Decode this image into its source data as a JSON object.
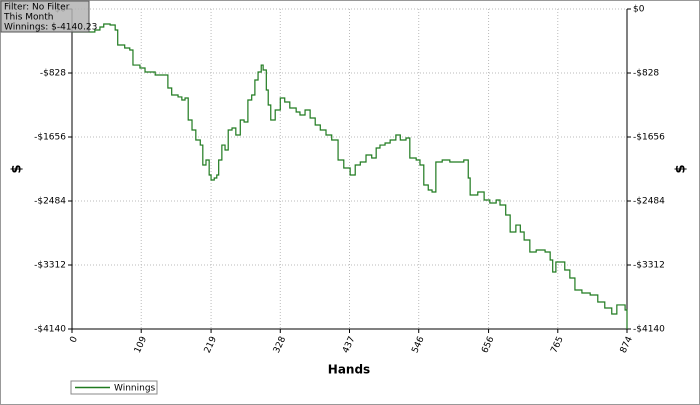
{
  "chart_data": {
    "type": "line",
    "annotations": [
      "Filter: No Filter",
      "This Month",
      "Winnings: $-4140.23"
    ],
    "x_label": "Hands",
    "y_label": "$",
    "y2_label": "$",
    "xlim": [
      0,
      874
    ],
    "xticks": [
      0,
      109,
      219,
      328,
      437,
      546,
      656,
      765,
      874
    ],
    "ylim": [
      -4140,
      0
    ],
    "yticks": [
      {
        "value": 0,
        "label": "$0"
      },
      {
        "value": -828,
        "label": "-$828"
      },
      {
        "value": -1656,
        "label": "-$1656"
      },
      {
        "value": -2484,
        "label": "-$2484"
      },
      {
        "value": -3312,
        "label": "-$3312"
      },
      {
        "value": -4140,
        "label": "-$4140"
      }
    ],
    "y2lim": [
      -4140,
      0
    ],
    "y2ticks": [
      {
        "value": 0,
        "label": "$0"
      },
      {
        "value": -828,
        "label": "-$828"
      },
      {
        "value": -1656,
        "label": "-$1656"
      },
      {
        "value": -2484,
        "label": "-$2484"
      },
      {
        "value": -3312,
        "label": "-$3312"
      },
      {
        "value": -4140,
        "label": "-$4140"
      }
    ],
    "grid": true,
    "legend": "bottom-left",
    "x": [
      0,
      20,
      36,
      44,
      50,
      60,
      68,
      72,
      83,
      91,
      96,
      107,
      115,
      123,
      131,
      146,
      151,
      157,
      167,
      173,
      178,
      183,
      189,
      195,
      202,
      206,
      211,
      216,
      219,
      224,
      228,
      231,
      236,
      241,
      246,
      252,
      258,
      265,
      271,
      277,
      283,
      288,
      293,
      298,
      301,
      306,
      309,
      313,
      320,
      328,
      335,
      343,
      353,
      359,
      367,
      375,
      383,
      391,
      400,
      409,
      419,
      428,
      438,
      446,
      454,
      463,
      472,
      479,
      485,
      493,
      501,
      510,
      517,
      526,
      532,
      542,
      548,
      554,
      561,
      567,
      573,
      583,
      595,
      608,
      617,
      624,
      627,
      639,
      649,
      658,
      668,
      674,
      683,
      690,
      699,
      706,
      712,
      721,
      731,
      745,
      753,
      757,
      762,
      776,
      784,
      792,
      803,
      816,
      828,
      839,
      850,
      858,
      866,
      871,
      874
    ],
    "series": [
      {
        "name": "Winnings",
        "color": "#1f7a1f",
        "values": [
          -298,
          -298,
          -272,
          -233,
          -194,
          -207,
          -272,
          -466,
          -505,
          -530,
          -725,
          -763,
          -815,
          -815,
          -854,
          -854,
          -1022,
          -1113,
          -1138,
          -1177,
          -1151,
          -1436,
          -1565,
          -1695,
          -1760,
          -2018,
          -1954,
          -2148,
          -2212,
          -2186,
          -2148,
          -1954,
          -1760,
          -1824,
          -1565,
          -1540,
          -1630,
          -1436,
          -1462,
          -1177,
          -1113,
          -919,
          -815,
          -725,
          -789,
          -1048,
          -1242,
          -1436,
          -1307,
          -1151,
          -1203,
          -1281,
          -1333,
          -1371,
          -1307,
          -1410,
          -1501,
          -1565,
          -1630,
          -1695,
          -1954,
          -2057,
          -2148,
          -2018,
          -1979,
          -1889,
          -1928,
          -1798,
          -1760,
          -1734,
          -1695,
          -1630,
          -1695,
          -1669,
          -1928,
          -1954,
          -2018,
          -2277,
          -2342,
          -2368,
          -1979,
          -1954,
          -1979,
          -1979,
          -1954,
          -2186,
          -2406,
          -2368,
          -2471,
          -2510,
          -2471,
          -2536,
          -2665,
          -2885,
          -2795,
          -2885,
          -2989,
          -3144,
          -3118,
          -3144,
          -3247,
          -3403,
          -3273,
          -3377,
          -3480,
          -3635,
          -3674,
          -3700,
          -3791,
          -3868,
          -3946,
          -3829,
          -3829,
          -3894,
          -4140.23
        ]
      }
    ]
  }
}
